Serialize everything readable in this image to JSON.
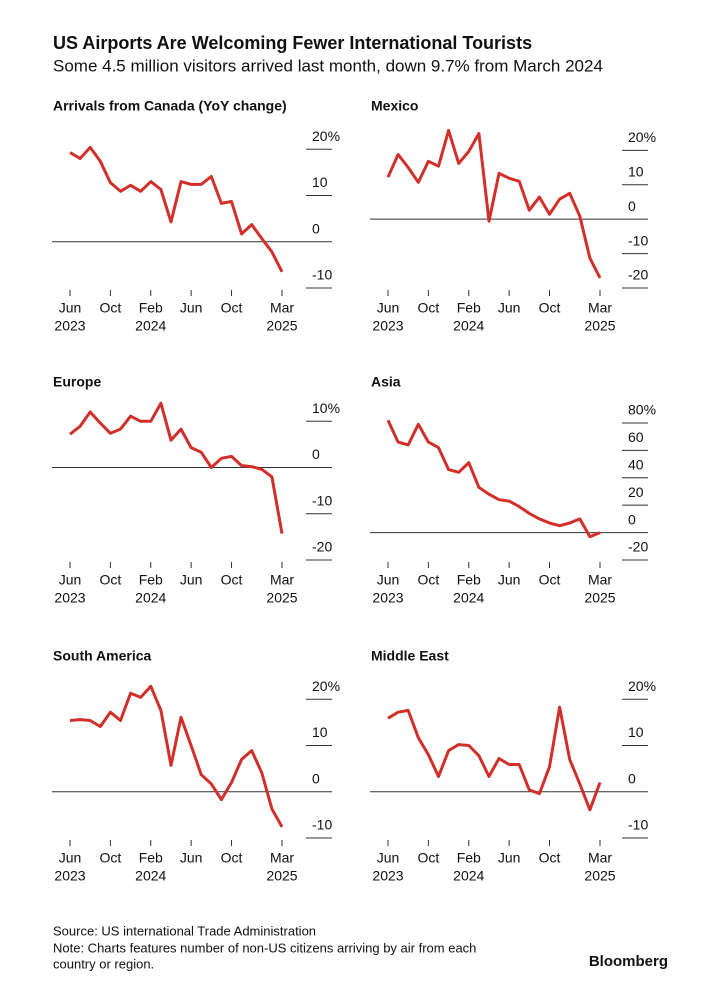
{
  "header": {
    "title": "US Airports Are Welcoming Fewer International Tourists",
    "subtitle": "Some 4.5 million visitors arrived last month, down 9.7% from March 2024"
  },
  "chart_data": [
    {
      "type": "line",
      "title": "Arrivals from Canada (YoY change)",
      "color": "#d12f2a",
      "x": [
        "2023-06",
        "2023-07",
        "2023-08",
        "2023-09",
        "2023-10",
        "2023-11",
        "2023-12",
        "2024-01",
        "2024-02",
        "2024-03",
        "2024-04",
        "2024-05",
        "2024-06",
        "2024-07",
        "2024-08",
        "2024-09",
        "2024-10",
        "2024-11",
        "2024-12",
        "2025-01",
        "2025-02",
        "2025-03"
      ],
      "xticks": [
        {
          "value": "2023-06",
          "label": "Jun",
          "year": "2023"
        },
        {
          "value": "2023-10",
          "label": "Oct"
        },
        {
          "value": "2024-02",
          "label": "Feb",
          "year": "2024"
        },
        {
          "value": "2024-06",
          "label": "Jun"
        },
        {
          "value": "2024-10",
          "label": "Oct"
        },
        {
          "value": "2025-03",
          "label": "Mar",
          "year": "2025"
        }
      ],
      "values": [
        19.3,
        18,
        20.4,
        17.4,
        12.8,
        10.9,
        12.2,
        10.9,
        13,
        11.3,
        4.3,
        13,
        12.4,
        12.4,
        14.1,
        8.3,
        8.7,
        1.7,
        3.7,
        0.7,
        -2.2,
        -6.5
      ],
      "ylim": [
        -10,
        22
      ],
      "yticks": [
        {
          "value": 20,
          "label": "20%"
        },
        10,
        0,
        -10
      ]
    },
    {
      "type": "line",
      "title": "Mexico",
      "color": "#d12f2a",
      "x": [
        "2023-06",
        "2023-07",
        "2023-08",
        "2023-09",
        "2023-10",
        "2023-11",
        "2023-12",
        "2024-01",
        "2024-02",
        "2024-03",
        "2024-04",
        "2024-05",
        "2024-06",
        "2024-07",
        "2024-08",
        "2024-09",
        "2024-10",
        "2024-11",
        "2024-12",
        "2025-01",
        "2025-02",
        "2025-03"
      ],
      "xticks": [
        {
          "value": "2023-06",
          "label": "Jun",
          "year": "2023"
        },
        {
          "value": "2023-10",
          "label": "Oct"
        },
        {
          "value": "2024-02",
          "label": "Feb",
          "year": "2024"
        },
        {
          "value": "2024-06",
          "label": "Jun"
        },
        {
          "value": "2024-10",
          "label": "Oct"
        },
        {
          "value": "2025-03",
          "label": "Mar",
          "year": "2025"
        }
      ],
      "values": [
        12.2,
        18.8,
        15,
        10.7,
        16.8,
        15.4,
        25.8,
        16.2,
        19.7,
        24.9,
        -0.6,
        13.3,
        11.9,
        11,
        2.6,
        6.4,
        1.4,
        5.8,
        7.5,
        0.9,
        -11.3,
        -17.1
      ],
      "ylim": [
        -20,
        23
      ],
      "yticks": [
        {
          "value": 20,
          "label": "20%"
        },
        10,
        0,
        -10,
        -20
      ]
    },
    {
      "type": "line",
      "title": "Europe",
      "color": "#d12f2a",
      "x": [
        "2023-06",
        "2023-07",
        "2023-08",
        "2023-09",
        "2023-10",
        "2023-11",
        "2023-12",
        "2024-01",
        "2024-02",
        "2024-03",
        "2024-04",
        "2024-05",
        "2024-06",
        "2024-07",
        "2024-08",
        "2024-09",
        "2024-10",
        "2024-11",
        "2024-12",
        "2025-01",
        "2025-02",
        "2025-03"
      ],
      "xticks": [
        {
          "value": "2023-06",
          "label": "Jun",
          "year": "2023"
        },
        {
          "value": "2023-10",
          "label": "Oct"
        },
        {
          "value": "2024-02",
          "label": "Feb",
          "year": "2024"
        },
        {
          "value": "2024-06",
          "label": "Jun"
        },
        {
          "value": "2024-10",
          "label": "Oct"
        },
        {
          "value": "2025-03",
          "label": "Mar",
          "year": "2025"
        }
      ],
      "values": [
        7.2,
        8.9,
        12,
        9.6,
        7.4,
        8.3,
        11.1,
        10,
        10,
        13.9,
        5.9,
        8.3,
        4.3,
        3.3,
        0,
        2,
        2.4,
        0.4,
        0.2,
        -0.4,
        -2,
        -14.3
      ],
      "ylim": [
        -20,
        12
      ],
      "yticks": [
        {
          "value": 10,
          "label": "10%"
        },
        0,
        -10,
        -20
      ]
    },
    {
      "type": "line",
      "title": "Asia",
      "color": "#d12f2a",
      "x": [
        "2023-06",
        "2023-07",
        "2023-08",
        "2023-09",
        "2023-10",
        "2023-11",
        "2023-12",
        "2024-01",
        "2024-02",
        "2024-03",
        "2024-04",
        "2024-05",
        "2024-06",
        "2024-07",
        "2024-08",
        "2024-09",
        "2024-10",
        "2024-11",
        "2024-12",
        "2025-01",
        "2025-02",
        "2025-03"
      ],
      "xticks": [
        {
          "value": "2023-06",
          "label": "Jun",
          "year": "2023"
        },
        {
          "value": "2023-10",
          "label": "Oct"
        },
        {
          "value": "2024-02",
          "label": "Feb",
          "year": "2024"
        },
        {
          "value": "2024-06",
          "label": "Jun"
        },
        {
          "value": "2024-10",
          "label": "Oct"
        },
        {
          "value": "2025-03",
          "label": "Mar",
          "year": "2025"
        }
      ],
      "values": [
        82,
        66,
        64,
        79,
        66,
        62,
        46,
        44,
        51,
        33,
        28,
        24,
        23,
        19,
        14,
        10,
        7,
        5,
        7,
        10,
        -3,
        0
      ],
      "ylim": [
        -20,
        88
      ],
      "yticks": [
        {
          "value": 80,
          "label": "80%"
        },
        60,
        40,
        20,
        0,
        -20
      ]
    },
    {
      "type": "line",
      "title": "South America",
      "color": "#d12f2a",
      "x": [
        "2023-06",
        "2023-07",
        "2023-08",
        "2023-09",
        "2023-10",
        "2023-11",
        "2023-12",
        "2024-01",
        "2024-02",
        "2024-03",
        "2024-04",
        "2024-05",
        "2024-06",
        "2024-07",
        "2024-08",
        "2024-09",
        "2024-10",
        "2024-11",
        "2024-12",
        "2025-01",
        "2025-02",
        "2025-03"
      ],
      "xticks": [
        {
          "value": "2023-06",
          "label": "Jun",
          "year": "2023"
        },
        {
          "value": "2023-10",
          "label": "Oct"
        },
        {
          "value": "2024-02",
          "label": "Feb",
          "year": "2024"
        },
        {
          "value": "2024-06",
          "label": "Jun"
        },
        {
          "value": "2024-10",
          "label": "Oct"
        },
        {
          "value": "2025-03",
          "label": "Mar",
          "year": "2025"
        }
      ],
      "values": [
        15.4,
        15.6,
        15.4,
        14.1,
        17.2,
        15.4,
        21.3,
        20.4,
        22.8,
        17.6,
        5.7,
        16.1,
        10,
        3.7,
        1.7,
        -1.7,
        2,
        7,
        8.9,
        4.1,
        -3.7,
        -7.6
      ],
      "ylim": [
        -10,
        22
      ],
      "yticks": [
        {
          "value": 20,
          "label": "20%"
        },
        10,
        0,
        -10
      ]
    },
    {
      "type": "line",
      "title": "Middle East",
      "color": "#d12f2a",
      "x": [
        "2023-06",
        "2023-07",
        "2023-08",
        "2023-09",
        "2023-10",
        "2023-11",
        "2023-12",
        "2024-01",
        "2024-02",
        "2024-03",
        "2024-04",
        "2024-05",
        "2024-06",
        "2024-07",
        "2024-08",
        "2024-09",
        "2024-10",
        "2024-11",
        "2024-12",
        "2025-01",
        "2025-02",
        "2025-03"
      ],
      "xticks": [
        {
          "value": "2023-06",
          "label": "Jun",
          "year": "2023"
        },
        {
          "value": "2023-10",
          "label": "Oct"
        },
        {
          "value": "2024-02",
          "label": "Feb",
          "year": "2024"
        },
        {
          "value": "2024-06",
          "label": "Jun"
        },
        {
          "value": "2024-10",
          "label": "Oct"
        },
        {
          "value": "2025-03",
          "label": "Mar",
          "year": "2025"
        }
      ],
      "values": [
        15.9,
        17.2,
        17.6,
        11.7,
        8,
        3.3,
        8.9,
        10.2,
        10,
        7.8,
        3.3,
        7.2,
        5.9,
        5.9,
        0.4,
        -0.4,
        5.4,
        18.3,
        7,
        1.7,
        -3.9,
        2
      ],
      "ylim": [
        -10,
        22
      ],
      "yticks": [
        {
          "value": 20,
          "label": "20%"
        },
        10,
        0,
        -10
      ]
    }
  ],
  "footer": {
    "source": "Source: US international Trade Administration",
    "note": [
      "Note: Charts features number of non-US citizens arriving by air from each",
      "country or region."
    ],
    "brand": "Bloomberg"
  }
}
